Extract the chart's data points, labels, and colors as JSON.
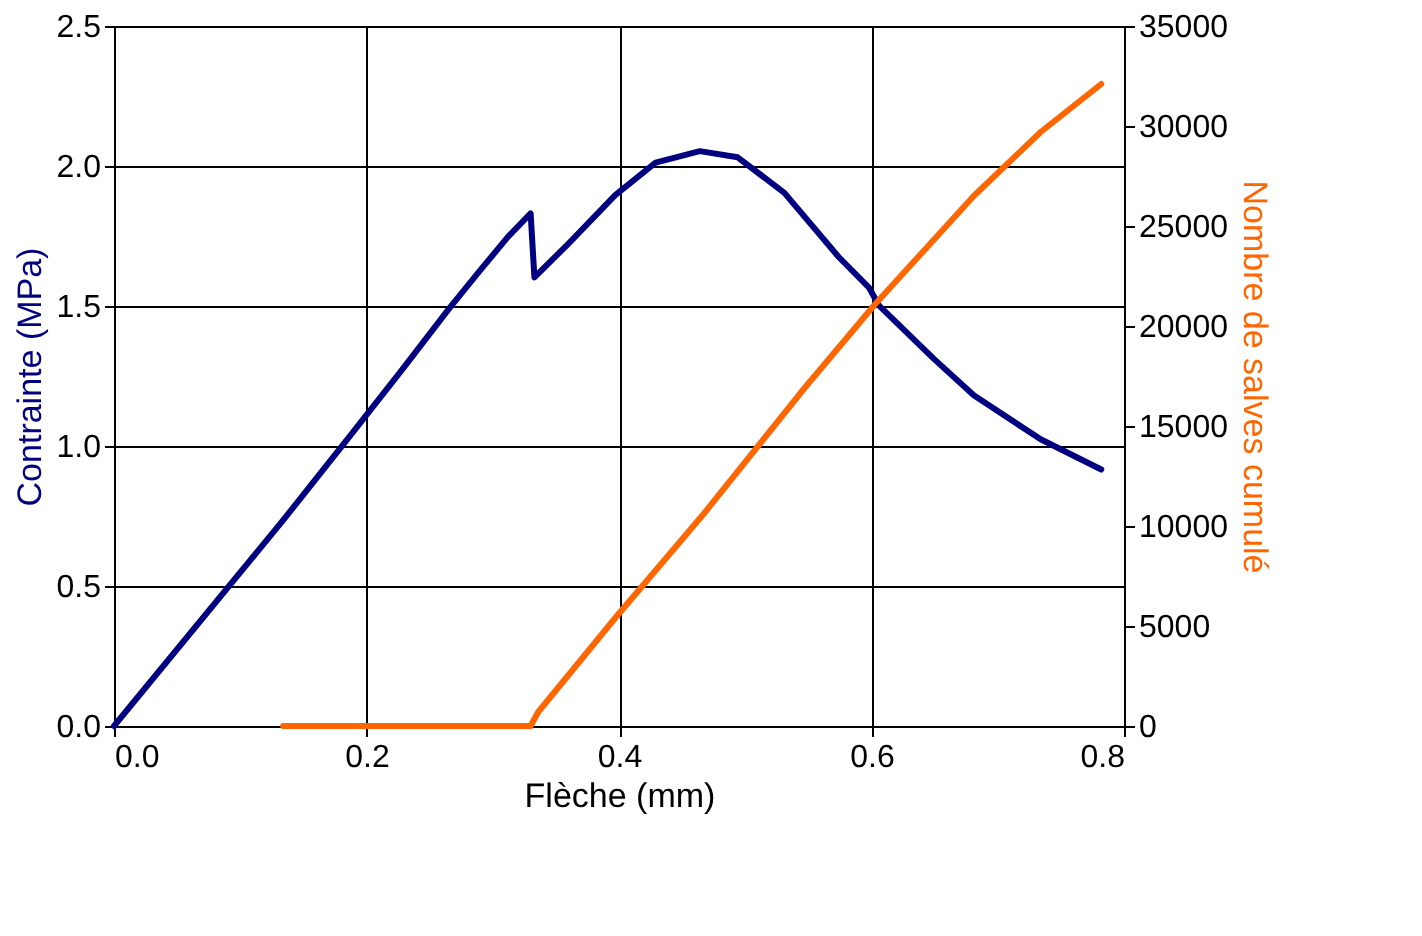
{
  "chart_data": {
    "type": "line",
    "xlabel": "Flèche (mm)",
    "ylabel": "Contrainte (MPa)",
    "y2label": "Nombre de salves cumulé",
    "xlim": [
      0,
      0.8
    ],
    "xticks": [
      {
        "value": 0,
        "label": "0.0"
      },
      0.2,
      0.4,
      0.6,
      0.8
    ],
    "ylim": [
      0,
      2.5
    ],
    "yticks": [
      {
        "value": 0,
        "label": "0.0"
      },
      0.5,
      {
        "value": 1,
        "label": "1.0"
      },
      1.5,
      {
        "value": 2,
        "label": "2.0"
      },
      2.5
    ],
    "y2lim": [
      0,
      35000
    ],
    "y2ticks": [
      0,
      5000,
      10000,
      15000,
      20000,
      25000,
      30000,
      35000
    ],
    "grid": true,
    "marker": "none",
    "line_style": "solid",
    "series": [
      {
        "color": "#000080",
        "x": [
          0,
          0.134,
          0.189,
          0.229,
          0.266,
          0.29,
          0.312,
          0.33,
          0.333,
          0.36,
          0.397,
          0.429,
          0.464,
          0.494,
          0.531,
          0.574,
          0.598,
          0.606,
          0.649,
          0.681,
          0.734,
          0.782
        ],
        "values": [
          0,
          0.735,
          1.048,
          1.277,
          1.494,
          1.627,
          1.747,
          1.831,
          1.602,
          1.723,
          1.896,
          2.012,
          2.053,
          2.031,
          1.904,
          1.675,
          1.566,
          1.501,
          1.313,
          1.181,
          1.024,
          0.916
        ]
      },
      {
        "color": "#ff6600",
        "axis": "y2",
        "x": [
          0.134,
          0.33,
          0.336,
          0.397,
          0.467,
          0.547,
          0.603,
          0.681,
          0.734,
          0.782
        ],
        "values": [
          0,
          0,
          700,
          5400,
          10600,
          16900,
          21100,
          26500,
          29700,
          32100
        ]
      }
    ]
  }
}
